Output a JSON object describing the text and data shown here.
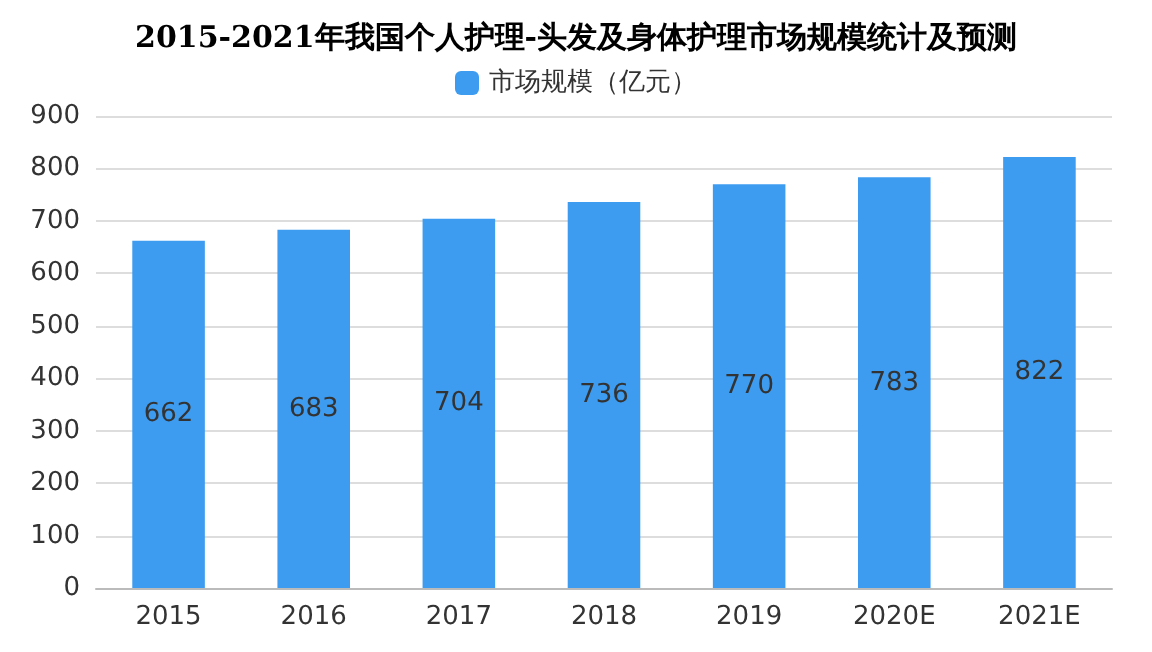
{
  "chart_data": {
    "type": "bar",
    "title": "2015-2021年我国个人护理-头发及身体护理市场规模统计及预测",
    "categories": [
      "2015",
      "2016",
      "2017",
      "2018",
      "2019",
      "2020E",
      "2021E"
    ],
    "series": [
      {
        "name": "市场规模（亿元）",
        "color": "#3d9cf0",
        "values": [
          662,
          683,
          704,
          736,
          770,
          783,
          822
        ]
      }
    ],
    "ylim": [
      0,
      900
    ],
    "yticks": [
      0,
      100,
      200,
      300,
      400,
      500,
      600,
      700,
      800,
      900
    ],
    "grid": "y",
    "legend": "top",
    "data_labels": true
  }
}
